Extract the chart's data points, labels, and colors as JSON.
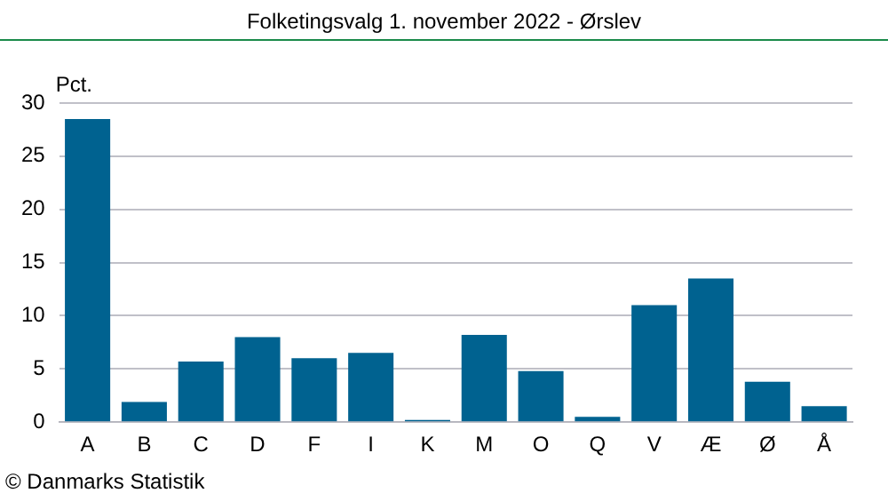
{
  "chart_data": {
    "type": "bar",
    "title": "Folketingsvalg 1. november 2022 - Ørslev",
    "ylabel": "Pct.",
    "annotations": [
      "© Danmarks Statistik"
    ],
    "categories": [
      "A",
      "B",
      "C",
      "D",
      "F",
      "I",
      "K",
      "M",
      "O",
      "Q",
      "V",
      "Æ",
      "Ø",
      "Å"
    ],
    "values": [
      28.5,
      1.9,
      5.7,
      8.0,
      6.0,
      6.5,
      0.2,
      8.2,
      4.8,
      0.5,
      11.0,
      13.5,
      3.8,
      1.5
    ],
    "color": "#006290",
    "ylim": [
      0,
      30
    ],
    "yticks": [
      0,
      5,
      10,
      15,
      20,
      25,
      30
    ],
    "grid": "y",
    "legend": false
  }
}
